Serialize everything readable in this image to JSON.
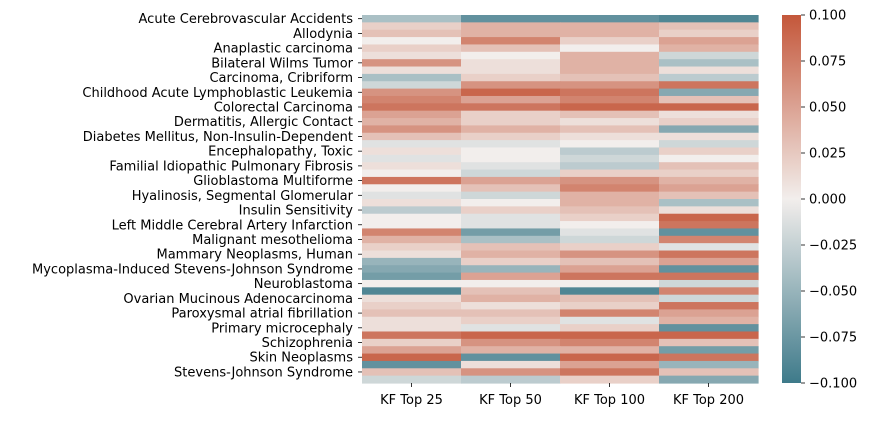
{
  "chart_data": {
    "type": "heatmap",
    "title": "",
    "xlabel": "",
    "ylabel": "",
    "columns": [
      "KF Top 25",
      "KF Top 50",
      "KF Top 100",
      "KF Top 200"
    ],
    "row_tick_labels": [
      "Acute Cerebrovascular Accidents",
      "Allodynia",
      "Anaplastic carcinoma",
      "Bilateral Wilms Tumor",
      "Carcinoma, Cribriform",
      "Childhood Acute Lymphoblastic Leukemia",
      "Colorectal Carcinoma",
      "Dermatitis, Allergic Contact",
      "Diabetes Mellitus, Non-Insulin-Dependent",
      "Encephalopathy, Toxic",
      "Familial Idiopathic Pulmonary Fibrosis",
      "Glioblastoma Multiforme",
      "Hyalinosis, Segmental Glomerular",
      "Insulin Sensitivity",
      "Left Middle Cerebral Artery Infarction",
      "Malignant mesothelioma",
      "Mammary Neoplasms, Human",
      "Mycoplasma-Induced Stevens-Johnson Syndrome",
      "Neuroblastoma",
      "Ovarian Mucinous Adenocarcinoma",
      "Paroxysmal atrial fibrillation",
      "Primary microcephaly",
      "Schizophrenia",
      "Skin Neoplasms",
      "Stevens-Johnson Syndrome"
    ],
    "row_count": 50,
    "values": [
      [
        -0.04,
        -0.08,
        -0.08,
        -0.09
      ],
      [
        0.02,
        0.04,
        0.04,
        0.03
      ],
      [
        0.03,
        0.04,
        0.04,
        0.02
      ],
      [
        0.0,
        0.07,
        0.02,
        0.05
      ],
      [
        0.02,
        0.03,
        0.0,
        0.04
      ],
      [
        0.01,
        0.0,
        0.04,
        -0.02
      ],
      [
        0.06,
        0.01,
        0.04,
        -0.04
      ],
      [
        0.01,
        0.01,
        0.04,
        0.01
      ],
      [
        -0.04,
        0.02,
        0.03,
        -0.03
      ],
      [
        -0.02,
        0.06,
        0.06,
        0.08
      ],
      [
        0.06,
        0.09,
        0.08,
        -0.06
      ],
      [
        0.07,
        0.05,
        0.07,
        0.03
      ],
      [
        0.08,
        0.08,
        0.09,
        0.09
      ],
      [
        0.05,
        0.02,
        0.03,
        0.01
      ],
      [
        0.04,
        0.02,
        0.01,
        0.02
      ],
      [
        0.06,
        0.04,
        0.03,
        -0.06
      ],
      [
        0.03,
        0.02,
        0.01,
        0.01
      ],
      [
        -0.01,
        -0.01,
        0.0,
        -0.02
      ],
      [
        0.01,
        0.0,
        -0.03,
        0.02
      ],
      [
        -0.01,
        0.0,
        -0.02,
        0.0
      ],
      [
        0.01,
        -0.01,
        -0.03,
        0.03
      ],
      [
        0.0,
        -0.02,
        0.02,
        0.02
      ],
      [
        0.08,
        0.05,
        0.06,
        0.04
      ],
      [
        0.0,
        0.03,
        0.07,
        0.05
      ],
      [
        -0.01,
        -0.02,
        0.04,
        0.03
      ],
      [
        0.01,
        0.0,
        0.04,
        -0.04
      ],
      [
        -0.03,
        0.02,
        0.03,
        0.01
      ],
      [
        0.0,
        -0.01,
        0.02,
        0.09
      ],
      [
        0.0,
        -0.01,
        0.0,
        0.08
      ],
      [
        0.07,
        -0.07,
        -0.01,
        -0.08
      ],
      [
        0.04,
        -0.04,
        -0.02,
        0.07
      ],
      [
        0.02,
        0.03,
        0.02,
        -0.01
      ],
      [
        0.01,
        0.04,
        0.06,
        0.08
      ],
      [
        -0.05,
        0.02,
        0.03,
        0.05
      ],
      [
        -0.06,
        -0.05,
        0.05,
        -0.08
      ],
      [
        -0.07,
        0.05,
        0.08,
        0.08
      ],
      [
        0.0,
        0.0,
        0.0,
        -0.02
      ],
      [
        -0.09,
        0.03,
        -0.09,
        0.07
      ],
      [
        0.01,
        0.04,
        0.03,
        -0.02
      ],
      [
        0.02,
        0.01,
        0.02,
        0.08
      ],
      [
        0.03,
        0.03,
        0.07,
        0.05
      ],
      [
        0.01,
        0.02,
        -0.01,
        0.04
      ],
      [
        0.01,
        -0.01,
        0.02,
        -0.08
      ],
      [
        0.08,
        0.09,
        0.09,
        0.09
      ],
      [
        0.02,
        0.06,
        0.07,
        0.03
      ],
      [
        0.05,
        0.04,
        0.04,
        -0.07
      ],
      [
        0.09,
        -0.08,
        0.09,
        0.08
      ],
      [
        -0.08,
        0.01,
        0.05,
        -0.05
      ],
      [
        0.03,
        0.06,
        0.08,
        0.03
      ],
      [
        -0.02,
        -0.03,
        0.02,
        -0.06
      ]
    ],
    "colorbar": {
      "vmin": -0.1,
      "vmax": 0.1,
      "tick_labels": [
        "0.100",
        "0.075",
        "0.050",
        "0.025",
        "0.000",
        "−0.025",
        "−0.050",
        "−0.075",
        "−0.100"
      ],
      "tick_values": [
        0.1,
        0.075,
        0.05,
        0.025,
        0.0,
        -0.025,
        -0.05,
        -0.075,
        -0.1
      ],
      "color_low": "#3e7a8a",
      "color_mid": "#f2eeec",
      "color_high": "#c4573a"
    }
  }
}
